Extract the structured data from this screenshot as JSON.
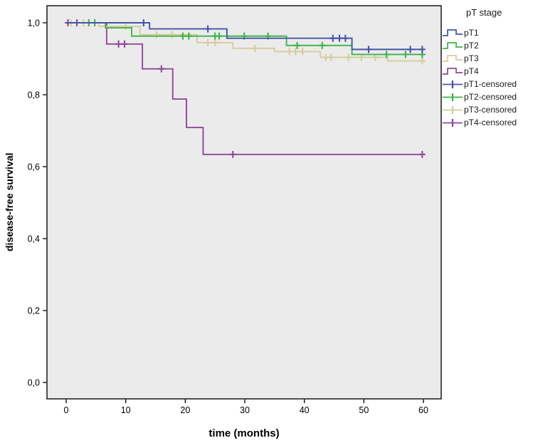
{
  "chart_data": {
    "type": "line",
    "subtype": "kaplan-meier-step",
    "title": "",
    "xlabel": "time (months)",
    "ylabel": "disease-free survival",
    "legend_title": "pT stage",
    "xlim": [
      0,
      60
    ],
    "ylim": [
      0.0,
      1.0
    ],
    "grid": false,
    "legend_position": "right",
    "plot_bg": "#ebebeb",
    "frame_color": "#262626",
    "x_ticks": {
      "values": [
        0,
        10,
        20,
        30,
        40,
        50,
        60
      ],
      "labels": [
        "0",
        "10",
        "20",
        "30",
        "40",
        "50",
        "60"
      ]
    },
    "y_ticks": {
      "values": [
        0.0,
        0.2,
        0.4,
        0.6,
        0.8,
        1.0
      ],
      "labels": [
        "0,0",
        "0,2",
        "0,4",
        "0,6",
        "0,8",
        "1,0"
      ]
    },
    "x_end": 60,
    "series": [
      {
        "name": "pT1",
        "color": "#4456a8",
        "steps": [
          [
            0,
            1.0
          ],
          [
            14,
            0.983
          ],
          [
            27,
            0.957
          ],
          [
            48,
            0.926
          ]
        ],
        "end_value": 0.926,
        "censored": [
          [
            13,
            1.0
          ],
          [
            23.8,
            0.983
          ],
          [
            44.8,
            0.957
          ],
          [
            45.9,
            0.957
          ],
          [
            46.9,
            0.957
          ],
          [
            50.8,
            0.926
          ],
          [
            57.8,
            0.926
          ],
          [
            59.8,
            0.926
          ]
        ]
      },
      {
        "name": "pT2",
        "color": "#3cb44b",
        "steps": [
          [
            0,
            1.0
          ],
          [
            6.6,
            0.986
          ],
          [
            11,
            0.963
          ],
          [
            37,
            0.937
          ],
          [
            48,
            0.912
          ]
        ],
        "end_value": 0.912,
        "censored": [
          [
            3.8,
            1.0
          ],
          [
            4.8,
            1.0
          ],
          [
            19.6,
            0.963
          ],
          [
            20.6,
            0.963
          ],
          [
            25.0,
            0.963
          ],
          [
            25.7,
            0.963
          ],
          [
            29.9,
            0.963
          ],
          [
            33.9,
            0.963
          ],
          [
            38.8,
            0.937
          ],
          [
            43.0,
            0.937
          ],
          [
            53.8,
            0.912
          ],
          [
            57.0,
            0.912
          ],
          [
            59.8,
            0.912
          ]
        ]
      },
      {
        "name": "pT3",
        "color": "#d6cd9a",
        "steps": [
          [
            0,
            1.0
          ],
          [
            5.5,
            0.99
          ],
          [
            12.4,
            0.967
          ],
          [
            22,
            0.945
          ],
          [
            28,
            0.929
          ],
          [
            35,
            0.92
          ],
          [
            42.7,
            0.904
          ],
          [
            54,
            0.894
          ]
        ],
        "end_value": 0.894,
        "censored": [
          [
            0.8,
            1.0
          ],
          [
            2.9,
            1.0
          ],
          [
            10.0,
            0.99
          ],
          [
            15.2,
            0.967
          ],
          [
            17.8,
            0.967
          ],
          [
            23.8,
            0.945
          ],
          [
            25.0,
            0.945
          ],
          [
            31.7,
            0.929
          ],
          [
            37.5,
            0.92
          ],
          [
            38.5,
            0.92
          ],
          [
            39.7,
            0.92
          ],
          [
            43.6,
            0.904
          ],
          [
            44.5,
            0.904
          ],
          [
            47.4,
            0.904
          ],
          [
            49.6,
            0.904
          ],
          [
            51.9,
            0.904
          ],
          [
            59.8,
            0.894
          ]
        ]
      },
      {
        "name": "pT4",
        "color": "#8f4a9b",
        "steps": [
          [
            0,
            1.0
          ],
          [
            6.8,
            0.941
          ],
          [
            12.8,
            0.872
          ],
          [
            17.9,
            0.788
          ],
          [
            20.2,
            0.709
          ],
          [
            23,
            0.634
          ]
        ],
        "end_value": 0.634,
        "censored": [
          [
            0.3,
            1.0
          ],
          [
            1.8,
            1.0
          ],
          [
            8.8,
            0.941
          ],
          [
            9.8,
            0.941
          ],
          [
            16.0,
            0.872
          ],
          [
            28.0,
            0.634
          ],
          [
            59.8,
            0.634
          ]
        ]
      }
    ],
    "legend_entries": [
      {
        "label": "pT1",
        "color": "#4456a8",
        "swatch": "step"
      },
      {
        "label": "pT2",
        "color": "#3cb44b",
        "swatch": "step"
      },
      {
        "label": "pT3",
        "color": "#d6cd9a",
        "swatch": "step"
      },
      {
        "label": "pT4",
        "color": "#8f4a9b",
        "swatch": "step"
      },
      {
        "label": "pT1-censored",
        "color": "#4456a8",
        "swatch": "censor"
      },
      {
        "label": "pT2-censored",
        "color": "#3cb44b",
        "swatch": "censor"
      },
      {
        "label": "pT3-censored",
        "color": "#d6cd9a",
        "swatch": "censor"
      },
      {
        "label": "pT4-censored",
        "color": "#8f4a9b",
        "swatch": "censor"
      }
    ]
  }
}
